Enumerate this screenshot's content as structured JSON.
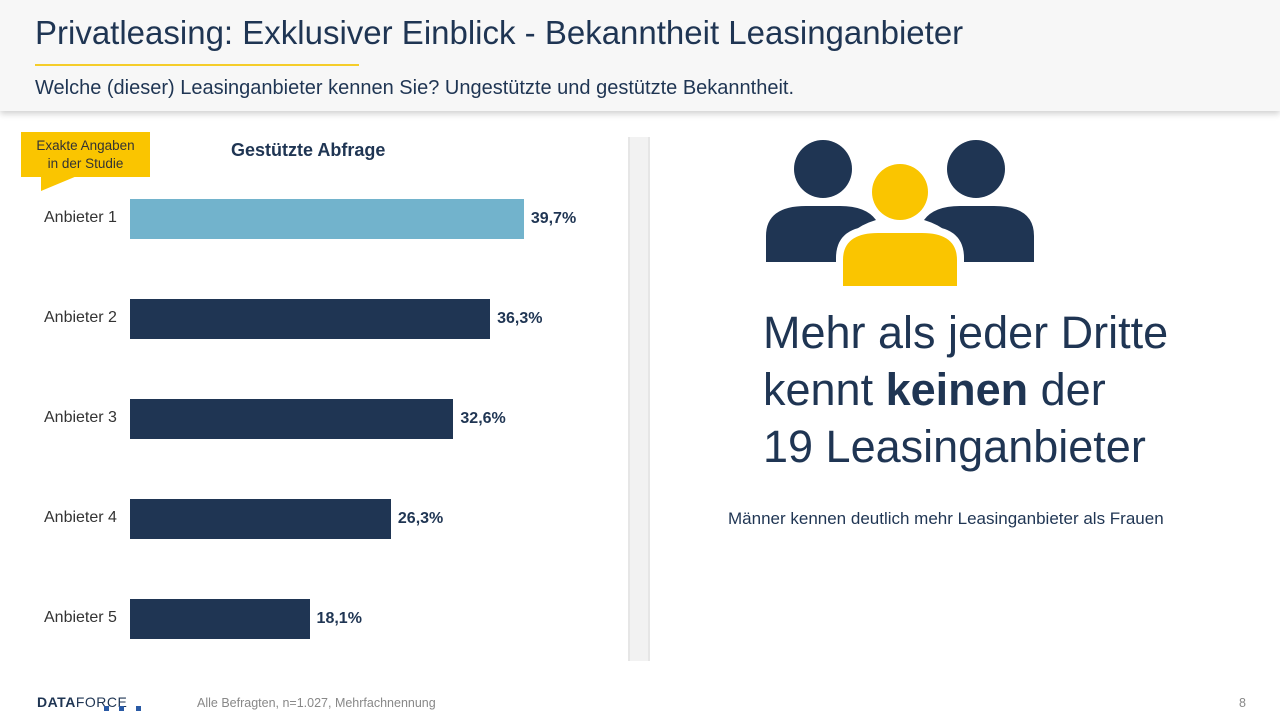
{
  "header": {
    "title": "Privatleasing: Exklusiver Einblick - Bekanntheit Leasinganbieter",
    "subtitle": "Welche (dieser) Leasinganbieter kennen Sie? Ungestützte  und gestützte Bekanntheit."
  },
  "callout": {
    "line1": "Exakte Angaben",
    "line2": "in der Studie"
  },
  "chart_data": {
    "type": "bar",
    "orientation": "horizontal",
    "title": "Gestützte Abfrage",
    "categories": [
      "Anbieter 1",
      "Anbieter 2",
      "Anbieter 3",
      "Anbieter 4",
      "Anbieter 5"
    ],
    "values": [
      39.7,
      36.3,
      32.6,
      26.3,
      18.1
    ],
    "labels": [
      "39,7%",
      "36,3%",
      "32,6%",
      "26,3%",
      "18,1%"
    ],
    "colors": [
      "#72b3cc",
      "#1f3553",
      "#1f3553",
      "#1f3553",
      "#1f3553"
    ],
    "unit": "%",
    "grid": false
  },
  "headline": {
    "part1": "Mehr als jeder Dritte",
    "part2a": "kennt ",
    "part2b": "keinen",
    "part2c": " der",
    "part3": "19 Leasinganbieter"
  },
  "note": "Männer kennen deutlich mehr Leasinganbieter als Frauen",
  "footer": {
    "logo_bold": "DATA",
    "logo_rest": "FORCE",
    "footnote": "Alle Befragten, n=1.027, Mehrfachnennung",
    "page": "8"
  },
  "colors": {
    "navy": "#1f3553",
    "yellow": "#fac500",
    "accent": "#72b3cc"
  }
}
